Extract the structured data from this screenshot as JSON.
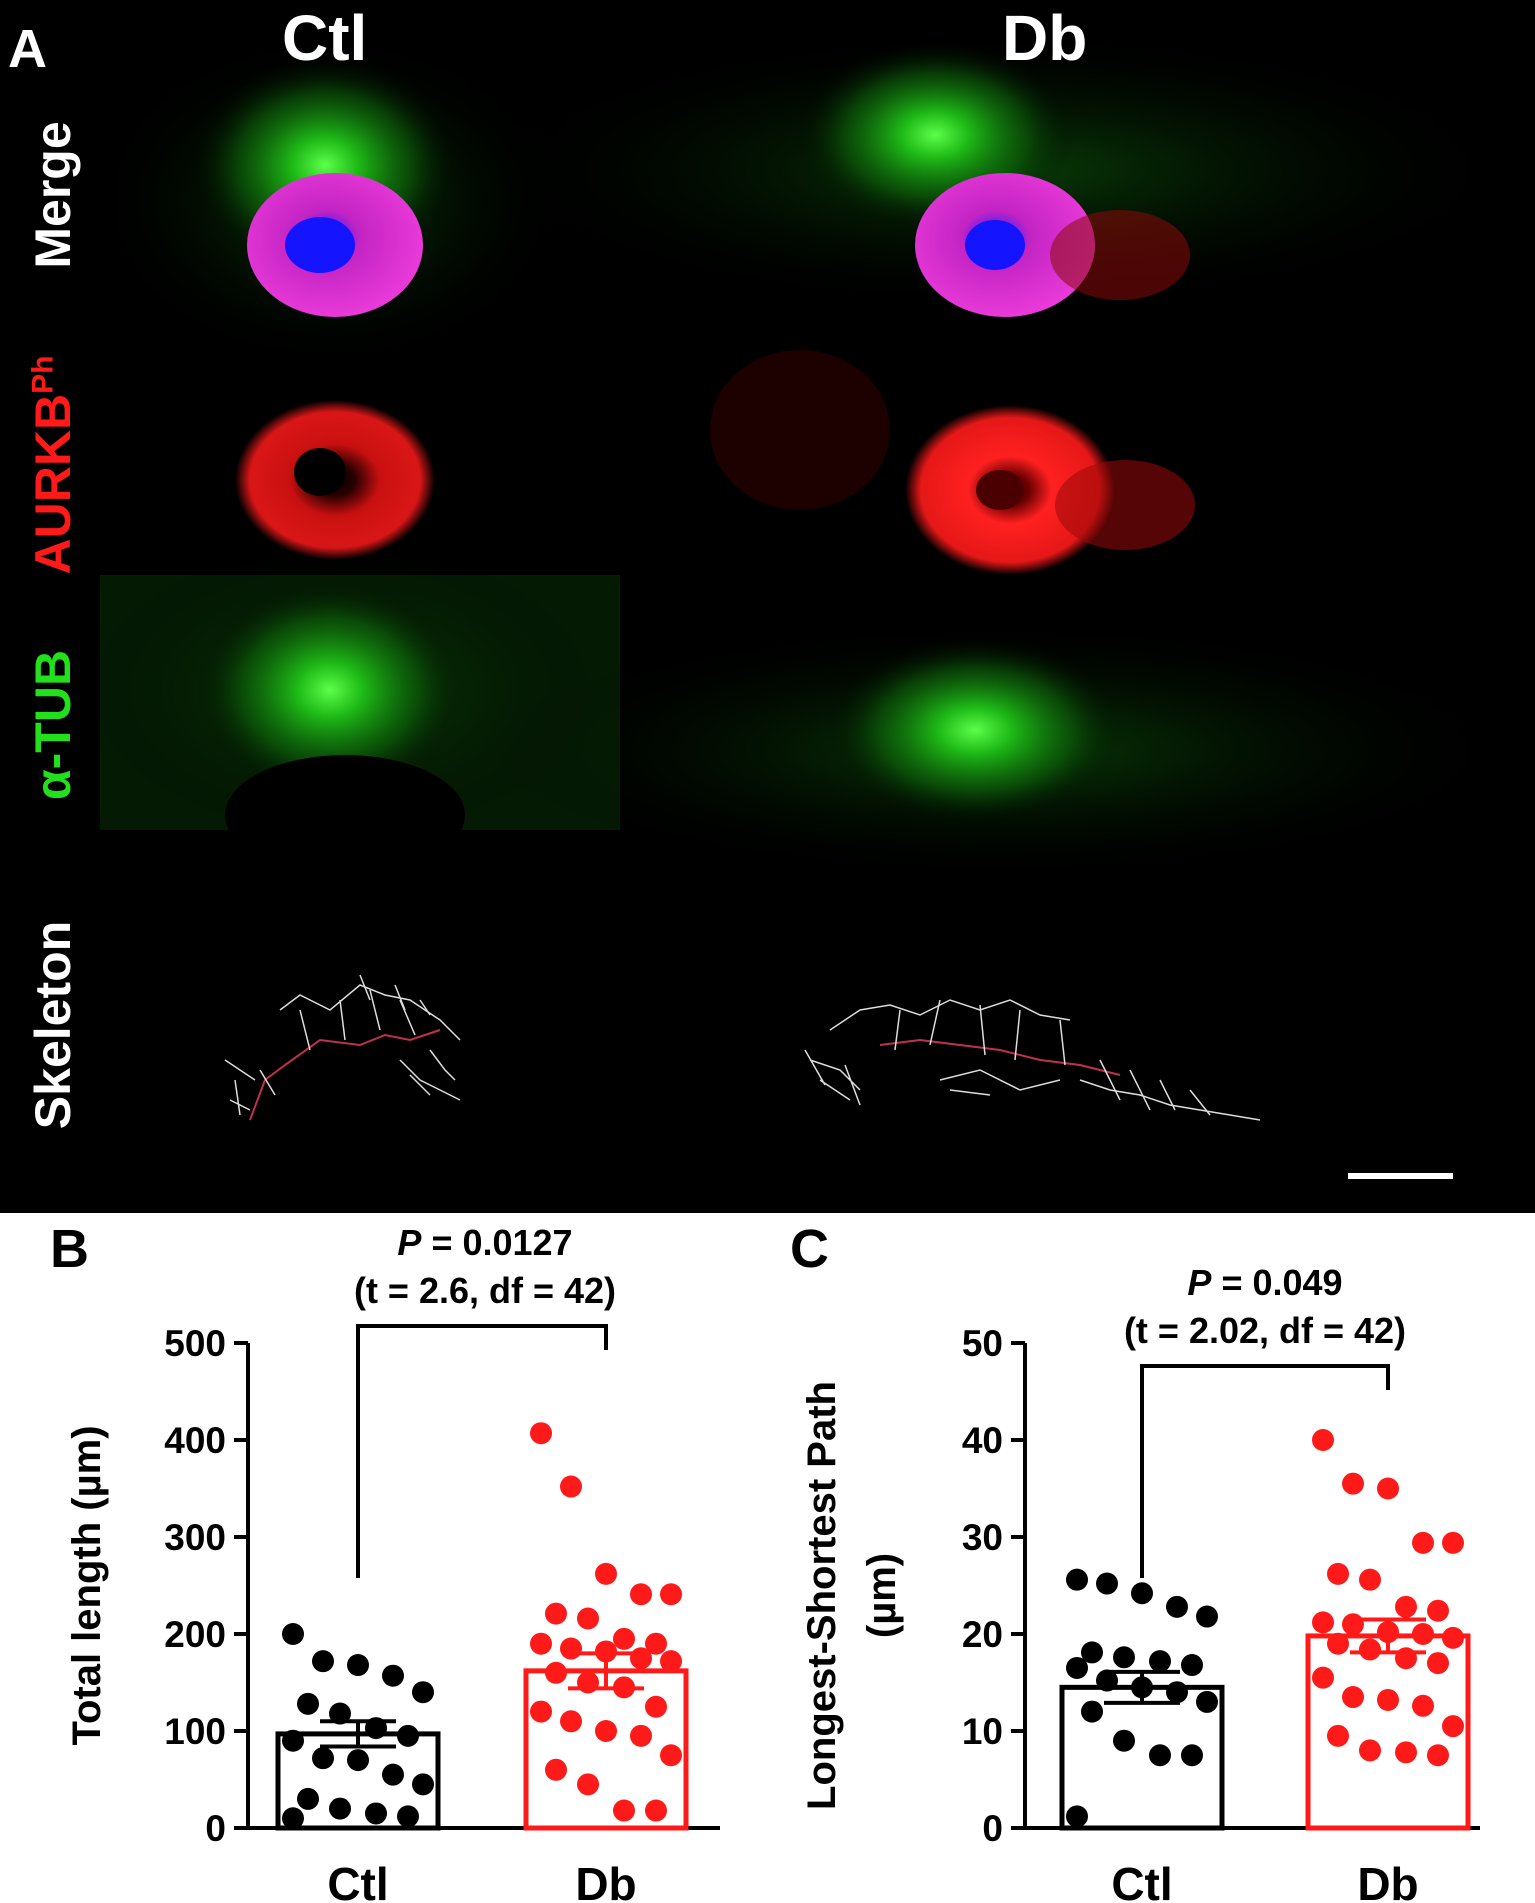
{
  "panel_a": {
    "letter": "A",
    "columns": [
      "Ctl",
      "Db"
    ],
    "rows": {
      "merge": "Merge",
      "aurkb": "AURKB",
      "aurkb_sup": "Ph",
      "tub": "α-TUB",
      "skeleton": "Skeleton"
    },
    "colors": {
      "background": "#000000",
      "green": "#22e01c",
      "red": "#ff1a1a",
      "blue": "#2a2aff",
      "white": "#ffffff"
    }
  },
  "chart_data": [
    {
      "panel": "B",
      "type": "bar",
      "categories": [
        "Ctl",
        "Db"
      ],
      "ylabel": "Total length (µm)",
      "ylim": [
        0,
        500
      ],
      "yticks": [
        0,
        100,
        200,
        300,
        400,
        500
      ],
      "stat_line1": "P = 0.0127",
      "stat_line1_italic": "P",
      "stat_line1_rest": " = 0.0127",
      "stat_line2": "(t = 2.6, df = 42)",
      "bars": [
        {
          "category": "Ctl",
          "mean": 97,
          "sem": 13,
          "color": "#000000",
          "points": [
            200,
            172,
            168,
            157,
            140,
            128,
            118,
            103,
            95,
            90,
            72,
            70,
            55,
            45,
            30,
            20,
            15,
            12,
            10
          ]
        },
        {
          "category": "Db",
          "mean": 162,
          "sem": 18,
          "color": "#ff1a1a",
          "points": [
            407,
            352,
            262,
            241,
            241,
            221,
            216,
            195,
            190,
            190,
            185,
            182,
            175,
            172,
            160,
            150,
            145,
            125,
            120,
            110,
            100,
            95,
            75,
            60,
            45,
            18,
            18
          ]
        }
      ]
    },
    {
      "panel": "C",
      "type": "bar",
      "categories": [
        "Ctl",
        "Db"
      ],
      "ylabel": "Longest-Shortest Path (µm)",
      "ylabel_line1": "Longest-Shortest Path",
      "ylabel_line2": "(µm)",
      "ylim": [
        0,
        50
      ],
      "yticks": [
        0,
        10,
        20,
        30,
        40,
        50
      ],
      "stat_line1": "P = 0.049",
      "stat_line1_italic": "P",
      "stat_line1_rest": " = 0.049",
      "stat_line2": "(t = 2.02, df = 42)",
      "bars": [
        {
          "category": "Ctl",
          "mean": 14.5,
          "sem": 1.6,
          "color": "#000000",
          "points": [
            25.6,
            25.2,
            24.2,
            22.8,
            21.8,
            18.1,
            17.6,
            17.2,
            16.8,
            16.5,
            15.2,
            14.5,
            14.0,
            13.0,
            12.0,
            9.0,
            7.5,
            7.5,
            1.2
          ]
        },
        {
          "category": "Db",
          "mean": 19.8,
          "sem": 1.7,
          "color": "#ff1a1a",
          "points": [
            40.0,
            35.5,
            35.0,
            29.4,
            29.4,
            26.2,
            25.6,
            22.8,
            22.4,
            21.2,
            21.0,
            20.2,
            20.0,
            19.6,
            19.0,
            18.4,
            17.5,
            17.0,
            15.5,
            13.5,
            13.2,
            12.6,
            10.5,
            9.5,
            8.0,
            7.8,
            7.5
          ]
        }
      ]
    }
  ]
}
